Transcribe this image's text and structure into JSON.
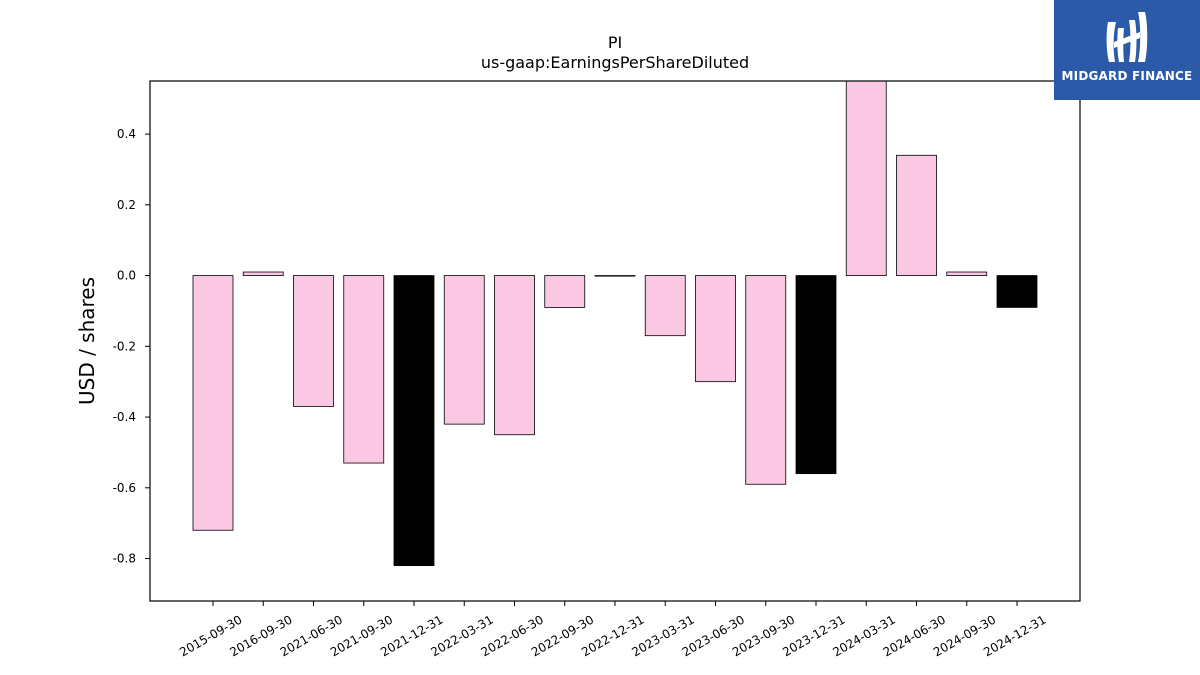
{
  "brand": {
    "name": "MIDGARD FINANCE",
    "color": "#2b5aa8",
    "icon": "midgard-logo-icon"
  },
  "chart_data": {
    "type": "bar",
    "title": "PI",
    "subtitle": "us-gaap:EarningsPerShareDiluted",
    "xlabel": "",
    "ylabel": "USD / shares",
    "ylim": [
      -0.92,
      0.55
    ],
    "yticks": [
      -0.8,
      -0.6,
      -0.4,
      -0.2,
      0.0,
      0.2,
      0.4
    ],
    "grid": false,
    "categories": [
      "2015-09-30",
      "2016-09-30",
      "2021-06-30",
      "2021-09-30",
      "2021-12-31",
      "2022-03-31",
      "2022-06-30",
      "2022-09-30",
      "2022-12-31",
      "2023-03-31",
      "2023-06-30",
      "2023-09-30",
      "2023-12-31",
      "2024-03-31",
      "2024-06-30",
      "2024-09-30",
      "2024-12-31"
    ],
    "values": [
      -0.72,
      0.01,
      -0.37,
      -0.53,
      -0.82,
      -0.42,
      -0.45,
      -0.09,
      0.0,
      -0.17,
      -0.3,
      -0.59,
      -0.56,
      0.55,
      0.34,
      0.01,
      -0.09
    ],
    "bar_colors": [
      "#fbc8e3",
      "#fbc8e3",
      "#fbc8e3",
      "#fbc8e3",
      "#000000",
      "#fbc8e3",
      "#fbc8e3",
      "#fbc8e3",
      "#fbc8e3",
      "#fbc8e3",
      "#fbc8e3",
      "#fbc8e3",
      "#000000",
      "#fbc8e3",
      "#fbc8e3",
      "#fbc8e3",
      "#000000"
    ]
  }
}
